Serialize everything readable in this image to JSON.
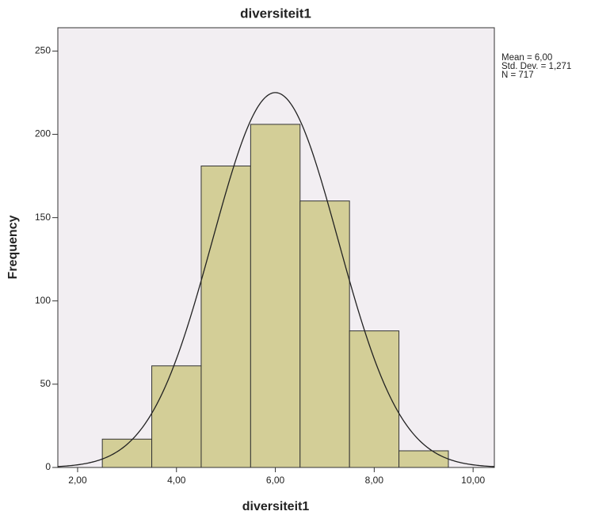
{
  "chart_data": {
    "type": "histogram",
    "title": "diversiteit1",
    "x_label": "diversiteit1",
    "y_label": "Frequency",
    "bins": [
      2.5,
      3.5,
      4.5,
      5.5,
      6.5,
      7.5,
      8.5,
      9.5
    ],
    "values": [
      17,
      61,
      181,
      206,
      160,
      82,
      10
    ],
    "color": "#d3ce97",
    "edge_color": "#333333",
    "plot_background": "#f2eef2",
    "curve_color": "#222222",
    "xlim": [
      1.6,
      10.43
    ],
    "ylim": [
      0,
      264
    ],
    "xticks": [
      {
        "value": 2,
        "label": "2,00"
      },
      {
        "value": 4,
        "label": "4,00"
      },
      {
        "value": 6,
        "label": "6,00"
      },
      {
        "value": 8,
        "label": "8,00"
      },
      {
        "value": 10,
        "label": "10,00"
      }
    ],
    "yticks": [
      0,
      50,
      100,
      150,
      200,
      250
    ],
    "stats": [
      {
        "value": 6,
        "label": "Mean = 6,00"
      },
      {
        "value": 1.271,
        "label": "Std. Dev. = 1,271"
      },
      {
        "value": 717,
        "label": "N = 717"
      }
    ]
  }
}
